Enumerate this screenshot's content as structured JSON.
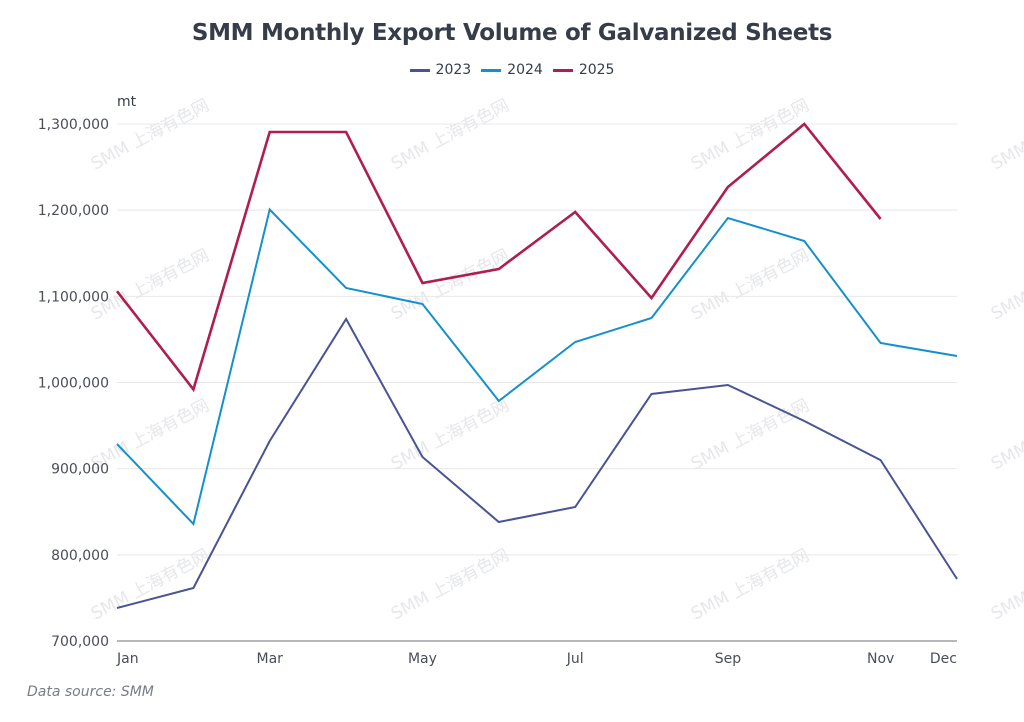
{
  "watermark": "SMM 上海有色网",
  "source": "Data source:  SMM",
  "colors": {
    "2023": "#4a5394",
    "2024": "#1590cd",
    "2025": "#b01e4e",
    "grid": "#e8e8ea",
    "axis": "#6e7079"
  },
  "chart_data": {
    "type": "line",
    "title": "SMM Monthly Export Volume of Galvanized Sheets",
    "ylabel": "mt",
    "xlabel": "",
    "ylim": [
      700000,
      1300000
    ],
    "yticks": [
      "700,000",
      "800,000",
      "900,000",
      "1,000,000",
      "1,100,000",
      "1,200,000",
      "1,300,000"
    ],
    "ytick_values": [
      700000,
      800000,
      900000,
      1000000,
      1100000,
      1200000,
      1300000
    ],
    "categories": [
      "Jan",
      "Feb",
      "Mar",
      "Apr",
      "May",
      "Jun",
      "Jul",
      "Aug",
      "Sep",
      "Oct",
      "Nov",
      "Dec"
    ],
    "xtick_labels": [
      "Jan",
      "",
      "Mar",
      "",
      "May",
      "",
      "Jul",
      "",
      "Sep",
      "",
      "Nov",
      "Dec"
    ],
    "legend_position": "top-center",
    "grid": true,
    "series": [
      {
        "name": "2023",
        "values": [
          738300,
          761500,
          932100,
          1073700,
          913500,
          838100,
          855500,
          986600,
          997100,
          955300,
          910000,
          772000
        ]
      },
      {
        "name": "2024",
        "values": [
          928600,
          835800,
          1200800,
          1109700,
          1091100,
          978500,
          1047000,
          1074800,
          1190900,
          1164200,
          1045800,
          1030700
        ]
      },
      {
        "name": "2025",
        "values": [
          1106000,
          992000,
          1290700,
          1290700,
          1115500,
          1131700,
          1197900,
          1098100,
          1226900,
          1300000,
          1189700,
          null
        ]
      }
    ]
  }
}
